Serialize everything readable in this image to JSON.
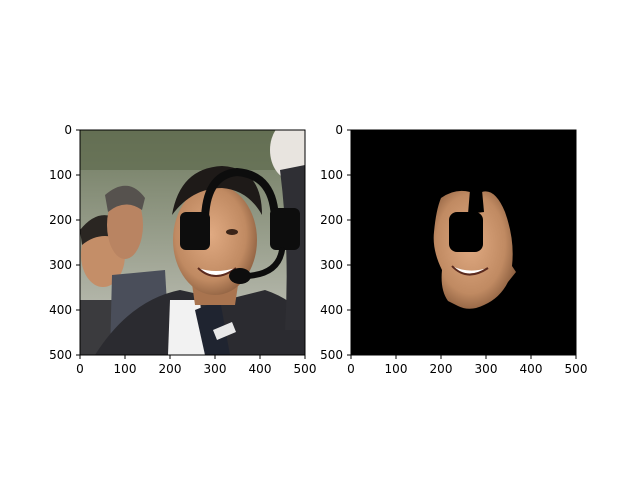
{
  "chart_data": [
    {
      "type": "image",
      "image_content": "photo of a smiling man in a dark suit, white shirt and tie, with other men behind him; a black headset drawing (headband arc, two ear cups, microphone boom) is overlaid on his head",
      "xlim": [
        0,
        500
      ],
      "ylim": [
        500,
        0
      ],
      "xticks": [
        0,
        100,
        200,
        300,
        400,
        500
      ],
      "yticks": [
        0,
        100,
        200,
        300,
        400,
        500
      ],
      "xtick_labels": [
        "0",
        "100",
        "200",
        "300",
        "400",
        "500"
      ],
      "ytick_labels": [
        "0",
        "100",
        "200",
        "300",
        "400",
        "500"
      ],
      "title": "",
      "xlabel": "",
      "ylabel": ""
    },
    {
      "type": "image",
      "image_content": "segmentation mask: black background with only the man's face region visible; a black blob masks the forehead/nose area",
      "xlim": [
        0,
        500
      ],
      "ylim": [
        500,
        0
      ],
      "xticks": [
        0,
        100,
        200,
        300,
        400,
        500
      ],
      "yticks": [
        0,
        100,
        200,
        300,
        400,
        500
      ],
      "xtick_labels": [
        "0",
        "100",
        "200",
        "300",
        "400",
        "500"
      ],
      "ytick_labels": [
        "0",
        "100",
        "200",
        "300",
        "400",
        "500"
      ],
      "title": "",
      "xlabel": "",
      "ylabel": ""
    }
  ],
  "colors": {
    "mask_background": "#000000",
    "skin": "#c9946d",
    "suit": "#2b2b30",
    "shirt": "#f2f2f2",
    "headset": "#0d0d0d",
    "photo_background": "#7e8a73"
  }
}
